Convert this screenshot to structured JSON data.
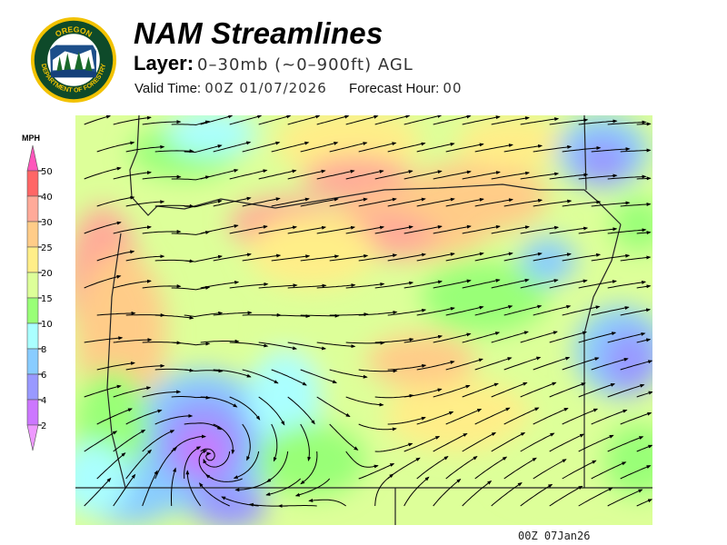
{
  "logo": {
    "top_text": "OREGON",
    "bottom_text": "DEPARTMENT OF FORESTRY"
  },
  "header": {
    "title": "NAM Streamlines",
    "layer_label": "Layer:",
    "layer_value": "0–30mb (~0–900ft) AGL",
    "valid_label": "Valid Time:",
    "valid_value": "00Z 01/07/2026",
    "forecast_label": "Forecast Hour:",
    "forecast_value": "00"
  },
  "legend": {
    "unit": "MPH",
    "ticks": [
      "50",
      "40",
      "30",
      "25",
      "20",
      "15",
      "10",
      "8",
      "6",
      "4",
      "2"
    ],
    "colors": {
      "above_50": "#ff55bb",
      "40_50": "#ff6666",
      "30_40": "#ffaa99",
      "25_30": "#ffcc88",
      "20_25": "#ffee88",
      "15_20": "#ddff99",
      "10_15": "#99ff77",
      "8_10": "#aaffff",
      "6_8": "#88ccff",
      "4_6": "#9999ff",
      "2_4": "#cc77ff",
      "below_2": "#ee99ff"
    }
  },
  "map": {
    "field": "wind streamlines over Oregon",
    "prevailing_flow": "southwest to northeast"
  },
  "footer": {
    "timestamp": "00Z 07Jan26"
  }
}
